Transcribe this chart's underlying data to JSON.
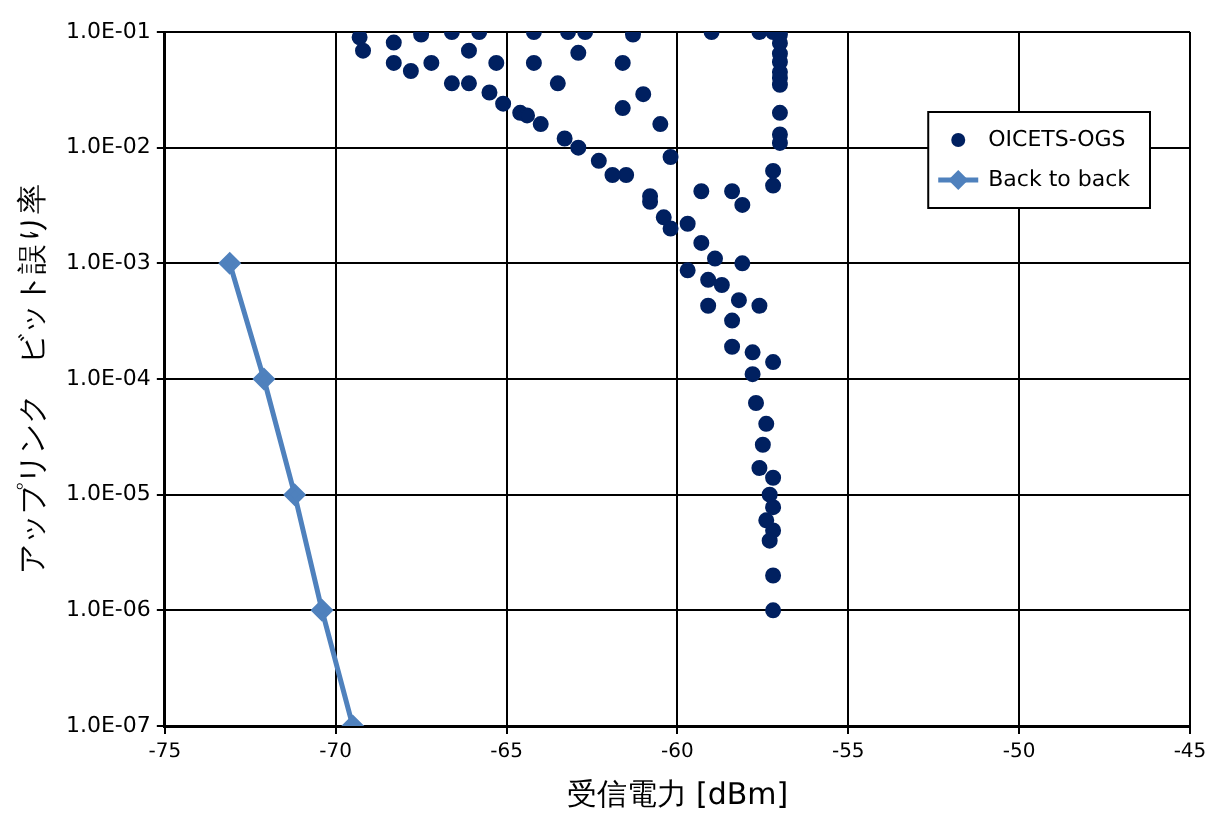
{
  "chart_data": {
    "type": "scatter",
    "xlabel": "受信電力 [dBm]",
    "ylabel": "アップリンク　ビット誤り率",
    "log": "y",
    "grid": true,
    "legend": "top right",
    "xlim": [
      -75,
      -45
    ],
    "xticks": [
      -75,
      -70,
      -65,
      -60,
      -55,
      -50,
      -45
    ],
    "ylim": [
      1e-07,
      0.1
    ],
    "yticks": [
      {
        "value": 1e-07,
        "label": "1.0E-07"
      },
      {
        "value": 1e-06,
        "label": "1.0E-06"
      },
      {
        "value": 1e-05,
        "label": "1.0E-05"
      },
      {
        "value": 0.0001,
        "label": "1.0E-04"
      },
      {
        "value": 0.001,
        "label": "1.0E-03"
      },
      {
        "value": 0.01,
        "label": "1.0E-02"
      },
      {
        "value": 0.1,
        "label": "1.0E-01"
      }
    ],
    "series": [
      {
        "name": "OICETS-OGS",
        "marker": "circle",
        "color": "#002060",
        "x": [
          -69.3,
          -67.5,
          -66.6,
          -65.8,
          -64.2,
          -63.2,
          -62.7,
          -61.3,
          -59.0,
          -57.6,
          -57.2,
          -57.0,
          -57.0,
          -57.0,
          -57.0,
          -57.0,
          -57.0,
          -57.0,
          -57.0,
          -57.0,
          -57.0,
          -69.2,
          -68.3,
          -67.2,
          -66.1,
          -65.1,
          -64.0,
          -62.9,
          -61.9,
          -60.8,
          -60.2,
          -59.7,
          -59.1,
          -58.4,
          -64.2,
          -61.6,
          -61.0,
          -60.5,
          -61.6,
          -63.5,
          -65.3,
          -62.9,
          -66.1,
          -60.2,
          -58.4,
          -58.1,
          -59.3,
          -58.1,
          -57.6,
          -57.2,
          -64.6,
          -63.3,
          -62.3,
          -61.5,
          -60.8,
          -60.4,
          -59.7,
          -59.3,
          -58.9,
          -58.7,
          -59.1,
          -58.2,
          -58.4,
          -57.8,
          -68.3,
          -66.6,
          -65.5,
          -64.4,
          -67.8,
          -57.8,
          -57.7,
          -57.4,
          -57.5,
          -57.6,
          -57.2,
          -57.3,
          -57.2,
          -57.4,
          -57.2,
          -57.3,
          -57.2,
          -57.2,
          -57.2,
          -57.2
        ],
        "values": [
          0.09,
          0.095,
          0.1,
          0.1,
          0.1,
          0.1,
          0.1,
          0.095,
          0.1,
          0.1,
          0.1,
          0.095,
          0.08,
          0.065,
          0.055,
          0.045,
          0.04,
          0.035,
          0.02,
          0.013,
          0.011,
          0.069,
          0.081,
          0.054,
          0.036,
          0.024,
          0.016,
          0.01,
          0.0058,
          0.0034,
          0.002,
          0.00087,
          0.00043,
          0.00019,
          0.054,
          0.054,
          0.029,
          0.016,
          0.022,
          0.036,
          0.054,
          0.066,
          0.069,
          0.0083,
          0.0042,
          0.0032,
          0.0042,
          0.001,
          0.00043,
          0.00014,
          0.02,
          0.012,
          0.0077,
          0.0058,
          0.0038,
          0.0025,
          0.0022,
          0.0015,
          0.0011,
          0.00065,
          0.00072,
          0.00048,
          0.00032,
          0.00017,
          0.054,
          0.036,
          0.03,
          0.019,
          0.046,
          0.00011,
          6.2e-05,
          4.1e-05,
          2.7e-05,
          1.7e-05,
          1.4e-05,
          1e-05,
          7.8e-06,
          6e-06,
          4.9e-06,
          4e-06,
          2e-06,
          1e-06,
          0.0063,
          0.0047
        ]
      },
      {
        "name": "Back to back",
        "type": "line",
        "marker": "diamond",
        "line_style": "solid",
        "color": "#4f81bd",
        "x": [
          -73.1,
          -72.1,
          -71.2,
          -70.4,
          -69.5
        ],
        "values": [
          0.001,
          0.0001,
          1e-05,
          1e-06,
          1e-07
        ]
      }
    ]
  }
}
